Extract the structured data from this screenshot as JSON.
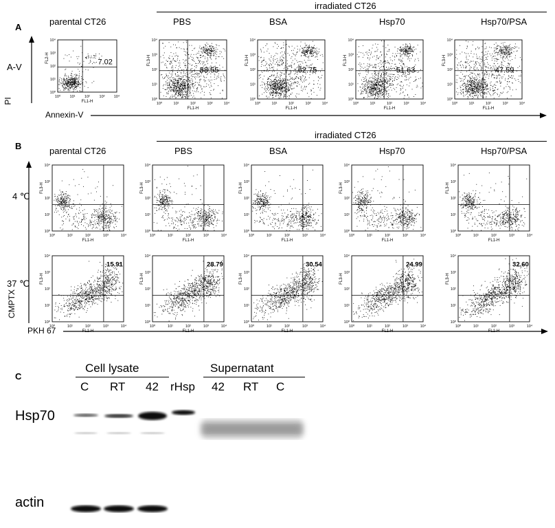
{
  "panel_a": {
    "letter": "A",
    "group_title": "irradiated CT26",
    "row_label": "A-V",
    "y_axis": "PI",
    "x_axis": "Annexin-V",
    "plots": [
      {
        "title": "parental CT26",
        "percent": "7.02"
      },
      {
        "title": "PBS",
        "percent": "58.55"
      },
      {
        "title": "BSA",
        "percent": "62.75"
      },
      {
        "title": "Hsp70",
        "percent": "51.63"
      },
      {
        "title": "Hsp70/PSA",
        "percent": "47.59"
      }
    ]
  },
  "panel_b": {
    "letter": "B",
    "group_title": "irradiated CT26",
    "row_labels": [
      "4 ℃",
      "37 ℃"
    ],
    "y_axis": "CMPTX",
    "x_axis": "PKH 67",
    "titles": [
      "parental CT26",
      "PBS",
      "BSA",
      "Hsp70",
      "Hsp70/PSA"
    ],
    "percents_37": [
      "15.91",
      "28.79",
      "30.54",
      "24.99",
      "32.60"
    ]
  },
  "flow_axis": {
    "x_name": "FL1-H",
    "y_name_a": "FL2-H",
    "y_name": "FL3-H",
    "ticks": [
      "10⁰",
      "10¹",
      "10²",
      "10³",
      "10⁴"
    ]
  },
  "panel_c": {
    "letter": "C",
    "group_left": "Cell lysate",
    "group_right": "Supernatant",
    "lanes": [
      "C",
      "RT",
      "42",
      "rHsp",
      "42",
      "RT",
      "C"
    ],
    "rows": [
      "Hsp70",
      "actin"
    ]
  }
}
